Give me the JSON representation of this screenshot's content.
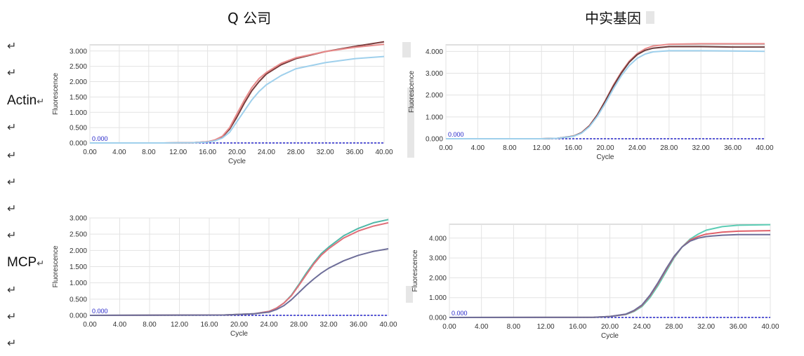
{
  "titles": {
    "left": "Q 公司",
    "right": "中实基因"
  },
  "row_labels": {
    "actin": "Actin",
    "mcp": "MCP"
  },
  "symbols": {
    "return_mark": "↵"
  },
  "chart_data": [
    {
      "type": "line",
      "panel": "actin-left",
      "xlabel": "Cycle",
      "ylabel": "Fluorescence",
      "xlim": [
        0,
        40
      ],
      "ylim": [
        0,
        3.2
      ],
      "xticks": [
        "0.00",
        "4.00",
        "8.00",
        "12.00",
        "16.00",
        "20.00",
        "24.00",
        "28.00",
        "32.00",
        "36.00",
        "40.00"
      ],
      "yticks": [
        "0.000",
        "0.500",
        "1.000",
        "1.500",
        "2.000",
        "2.500",
        "3.000"
      ],
      "threshold": {
        "value": 0.0,
        "label": "0.000"
      },
      "grid": true,
      "series": [
        {
          "color": "#7a3b3b",
          "x": [
            0,
            10,
            14,
            16,
            17,
            18,
            19,
            20,
            21,
            22,
            23,
            24,
            26,
            28,
            32,
            36,
            40
          ],
          "y": [
            0,
            0,
            0.01,
            0.04,
            0.09,
            0.2,
            0.45,
            0.85,
            1.3,
            1.7,
            2.0,
            2.25,
            2.55,
            2.75,
            2.98,
            3.15,
            3.3
          ]
        },
        {
          "color": "#e88a8a",
          "x": [
            0,
            10,
            14,
            16,
            17,
            18,
            19,
            20,
            21,
            22,
            23,
            24,
            26,
            28,
            32,
            36,
            40
          ],
          "y": [
            0,
            0,
            0.01,
            0.04,
            0.1,
            0.22,
            0.5,
            0.95,
            1.4,
            1.8,
            2.1,
            2.3,
            2.6,
            2.78,
            2.98,
            3.12,
            3.22
          ]
        },
        {
          "color": "#9fd0ec",
          "x": [
            0,
            10,
            14,
            16,
            17,
            18,
            19,
            20,
            21,
            22,
            23,
            24,
            26,
            28,
            32,
            36,
            40
          ],
          "y": [
            0,
            0,
            0.01,
            0.03,
            0.07,
            0.16,
            0.35,
            0.7,
            1.05,
            1.4,
            1.68,
            1.9,
            2.2,
            2.42,
            2.62,
            2.75,
            2.82
          ]
        }
      ]
    },
    {
      "type": "line",
      "panel": "actin-right",
      "xlabel": "Cycle",
      "ylabel": "Fluorescence",
      "xlim": [
        0,
        40
      ],
      "ylim": [
        0,
        4.3
      ],
      "xticks": [
        "0.00",
        "4.00",
        "8.00",
        "12.00",
        "16.00",
        "20.00",
        "24.00",
        "28.00",
        "32.00",
        "36.00",
        "40.00"
      ],
      "yticks": [
        "0.000",
        "1.000",
        "2.000",
        "3.000",
        "4.000"
      ],
      "threshold": {
        "value": 0.0,
        "label": "0.000"
      },
      "grid": true,
      "series": [
        {
          "color": "#e88a8a",
          "x": [
            0,
            12,
            14,
            16,
            17,
            18,
            19,
            20,
            21,
            22,
            23,
            24,
            25,
            26,
            28,
            32,
            36,
            40
          ],
          "y": [
            0,
            0,
            0.02,
            0.12,
            0.28,
            0.6,
            1.1,
            1.75,
            2.45,
            3.05,
            3.55,
            3.9,
            4.12,
            4.25,
            4.33,
            4.35,
            4.35,
            4.35
          ]
        },
        {
          "color": "#6b3a3a",
          "x": [
            0,
            12,
            14,
            16,
            17,
            18,
            19,
            20,
            21,
            22,
            23,
            24,
            25,
            26,
            28,
            32,
            36,
            40
          ],
          "y": [
            0,
            0,
            0.02,
            0.12,
            0.27,
            0.58,
            1.08,
            1.72,
            2.4,
            3.0,
            3.5,
            3.85,
            4.05,
            4.15,
            4.22,
            4.22,
            4.2,
            4.2
          ]
        },
        {
          "color": "#9fd0ec",
          "x": [
            0,
            12,
            14,
            16,
            17,
            18,
            19,
            20,
            21,
            22,
            23,
            24,
            25,
            26,
            28,
            32,
            36,
            40
          ],
          "y": [
            0,
            0,
            0.02,
            0.11,
            0.25,
            0.55,
            1.02,
            1.62,
            2.28,
            2.88,
            3.35,
            3.68,
            3.88,
            3.98,
            4.03,
            4.03,
            4.02,
            4.0
          ]
        }
      ]
    },
    {
      "type": "line",
      "panel": "mcp-left",
      "xlabel": "Cycle",
      "ylabel": "Fluorescence",
      "xlim": [
        0,
        40
      ],
      "ylim": [
        0,
        3.0
      ],
      "xticks": [
        "0.00",
        "4.00",
        "8.00",
        "12.00",
        "16.00",
        "20.00",
        "24.00",
        "28.00",
        "32.00",
        "36.00",
        "40.00"
      ],
      "yticks": [
        "0.000",
        "0.500",
        "1.000",
        "1.500",
        "2.000",
        "2.500",
        "3.000"
      ],
      "threshold": {
        "value": 0.0,
        "label": "0.000"
      },
      "grid": true,
      "series": [
        {
          "color": "#4fb8a8",
          "x": [
            0,
            18,
            22,
            24,
            25,
            26,
            27,
            28,
            29,
            30,
            31,
            32,
            34,
            36,
            38,
            40
          ],
          "y": [
            0,
            0.01,
            0.05,
            0.12,
            0.22,
            0.38,
            0.62,
            0.95,
            1.3,
            1.62,
            1.9,
            2.1,
            2.45,
            2.68,
            2.85,
            2.95
          ]
        },
        {
          "color": "#e0707a",
          "x": [
            0,
            18,
            22,
            24,
            25,
            26,
            27,
            28,
            29,
            30,
            31,
            32,
            34,
            36,
            38,
            40
          ],
          "y": [
            0,
            0.01,
            0.05,
            0.12,
            0.22,
            0.38,
            0.6,
            0.92,
            1.25,
            1.58,
            1.85,
            2.05,
            2.38,
            2.6,
            2.75,
            2.85
          ]
        },
        {
          "color": "#6e6e99",
          "x": [
            0,
            18,
            22,
            24,
            25,
            26,
            27,
            28,
            29,
            30,
            31,
            32,
            34,
            36,
            38,
            40
          ],
          "y": [
            0,
            0.01,
            0.05,
            0.1,
            0.18,
            0.3,
            0.48,
            0.7,
            0.92,
            1.12,
            1.3,
            1.45,
            1.68,
            1.85,
            1.97,
            2.05
          ]
        }
      ]
    },
    {
      "type": "line",
      "panel": "mcp-right",
      "xlabel": "Cycle",
      "ylabel": "Fluorescence",
      "xlim": [
        0,
        40
      ],
      "ylim": [
        0,
        4.7
      ],
      "xticks": [
        "0.00",
        "4.00",
        "8.00",
        "12.00",
        "16.00",
        "20.00",
        "24.00",
        "28.00",
        "32.00",
        "36.00",
        "40.00"
      ],
      "yticks": [
        "0.000",
        "1.000",
        "2.000",
        "3.000",
        "4.000"
      ],
      "threshold": {
        "value": 0.0,
        "label": "0.000"
      },
      "grid": true,
      "series": [
        {
          "color": "#5ccdb5",
          "x": [
            0,
            18,
            20,
            22,
            23,
            24,
            25,
            26,
            27,
            28,
            29,
            30,
            31,
            32,
            34,
            36,
            40
          ],
          "y": [
            0,
            0.01,
            0.05,
            0.15,
            0.3,
            0.55,
            1.0,
            1.6,
            2.3,
            3.0,
            3.55,
            3.95,
            4.2,
            4.4,
            4.58,
            4.65,
            4.68
          ]
        },
        {
          "color": "#e0606a",
          "x": [
            0,
            18,
            20,
            22,
            23,
            24,
            25,
            26,
            27,
            28,
            29,
            30,
            31,
            32,
            34,
            36,
            40
          ],
          "y": [
            0,
            0.01,
            0.05,
            0.16,
            0.33,
            0.6,
            1.08,
            1.7,
            2.4,
            3.05,
            3.55,
            3.9,
            4.08,
            4.2,
            4.3,
            4.35,
            4.38
          ]
        },
        {
          "color": "#6e6e99",
          "x": [
            0,
            18,
            20,
            22,
            23,
            24,
            25,
            26,
            27,
            28,
            29,
            30,
            31,
            32,
            34,
            36,
            40
          ],
          "y": [
            0,
            0.01,
            0.05,
            0.17,
            0.35,
            0.63,
            1.12,
            1.75,
            2.45,
            3.08,
            3.55,
            3.85,
            4.0,
            4.08,
            4.15,
            4.18,
            4.18
          ]
        }
      ]
    }
  ]
}
